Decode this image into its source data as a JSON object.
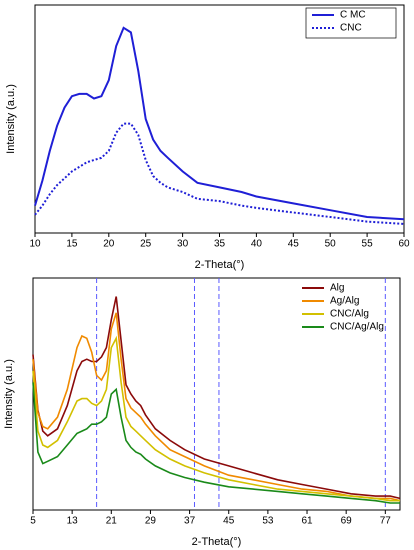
{
  "chart_data": [
    {
      "type": "line",
      "x_label": "2-Theta(°)",
      "y_label": "Intensity (a.u.)",
      "x": [
        10,
        11,
        12,
        13,
        14,
        15,
        16,
        17,
        18,
        19,
        20,
        21,
        22,
        23,
        24,
        25,
        26,
        27,
        28,
        30,
        32,
        35,
        38,
        40,
        45,
        50,
        55,
        60
      ],
      "series": [
        {
          "name": "C MC",
          "color": "#1f1fd6",
          "line_style": "solid",
          "values": [
            12,
            23,
            36,
            47,
            55,
            60,
            61,
            61,
            59,
            60,
            67,
            82,
            90,
            88,
            71,
            50,
            41,
            36,
            33,
            27,
            22,
            20,
            18,
            16,
            13,
            10,
            7,
            6
          ]
        },
        {
          "name": "CNC",
          "color": "#1f1fd6",
          "line_style": "dotted",
          "values": [
            8,
            12,
            17,
            21,
            24,
            27,
            29,
            31,
            32,
            33,
            36,
            44,
            48,
            48,
            43,
            32,
            25,
            22,
            20,
            18,
            15,
            14,
            12,
            11,
            9,
            7,
            5,
            4
          ]
        }
      ],
      "xlim": [
        10,
        60
      ],
      "xticks": [
        10,
        15,
        20,
        25,
        30,
        35,
        40,
        45,
        50,
        55,
        60
      ],
      "ylim": [
        0,
        100
      ],
      "legend": "top-right"
    },
    {
      "type": "line",
      "x_label": "2-Theta(°)",
      "y_label": "Intensity (a.u.)",
      "x": [
        5,
        6,
        7,
        8,
        10,
        12,
        14,
        15,
        16,
        17,
        18,
        19,
        20,
        21,
        22,
        23,
        24,
        25,
        26,
        27,
        28,
        30,
        33,
        36,
        40,
        45,
        50,
        55,
        60,
        65,
        70,
        75,
        78,
        80
      ],
      "series": [
        {
          "name": "Alg",
          "color": "#8b0a0a",
          "line_style": "solid",
          "values": [
            67,
            43,
            34,
            32,
            35,
            45,
            60,
            64,
            65,
            64,
            64,
            66,
            70,
            82,
            92,
            73,
            54,
            50,
            47,
            45,
            41,
            35,
            30,
            26,
            22,
            19,
            16,
            13,
            11,
            9,
            7,
            6,
            6,
            5
          ]
        },
        {
          "name": "Ag/Alg",
          "color": "#f08a00",
          "line_style": "solid",
          "values": [
            65,
            42,
            36,
            35,
            40,
            52,
            70,
            75,
            74,
            68,
            58,
            56,
            60,
            78,
            85,
            65,
            48,
            44,
            42,
            40,
            37,
            32,
            26,
            23,
            19,
            15,
            13,
            11,
            9,
            8,
            6,
            5,
            5,
            4
          ]
        },
        {
          "name": "CNC/Alg",
          "color": "#d2c000",
          "line_style": "solid",
          "values": [
            60,
            34,
            28,
            27,
            30,
            38,
            47,
            48,
            48,
            46,
            45,
            47,
            52,
            70,
            74,
            55,
            40,
            36,
            34,
            32,
            30,
            26,
            22,
            19,
            16,
            13,
            11,
            9,
            8,
            7,
            6,
            5,
            4,
            4
          ]
        },
        {
          "name": "CNC/Ag/Alg",
          "color": "#1a8a1a",
          "line_style": "solid",
          "values": [
            55,
            25,
            20,
            21,
            23,
            28,
            33,
            34,
            35,
            37,
            37,
            38,
            40,
            50,
            52,
            40,
            30,
            27,
            25,
            24,
            22,
            19,
            16,
            14,
            12,
            10,
            9,
            8,
            7,
            6,
            5,
            4,
            3,
            3
          ]
        }
      ],
      "reference_lines": [
        18,
        38,
        43,
        77
      ],
      "reference_color": "#5a5aff",
      "xlim": [
        5,
        80
      ],
      "xticks": [
        5,
        13,
        21,
        29,
        37,
        45,
        53,
        61,
        69,
        77
      ],
      "ylim": [
        0,
        100
      ],
      "legend": "top-right"
    }
  ]
}
